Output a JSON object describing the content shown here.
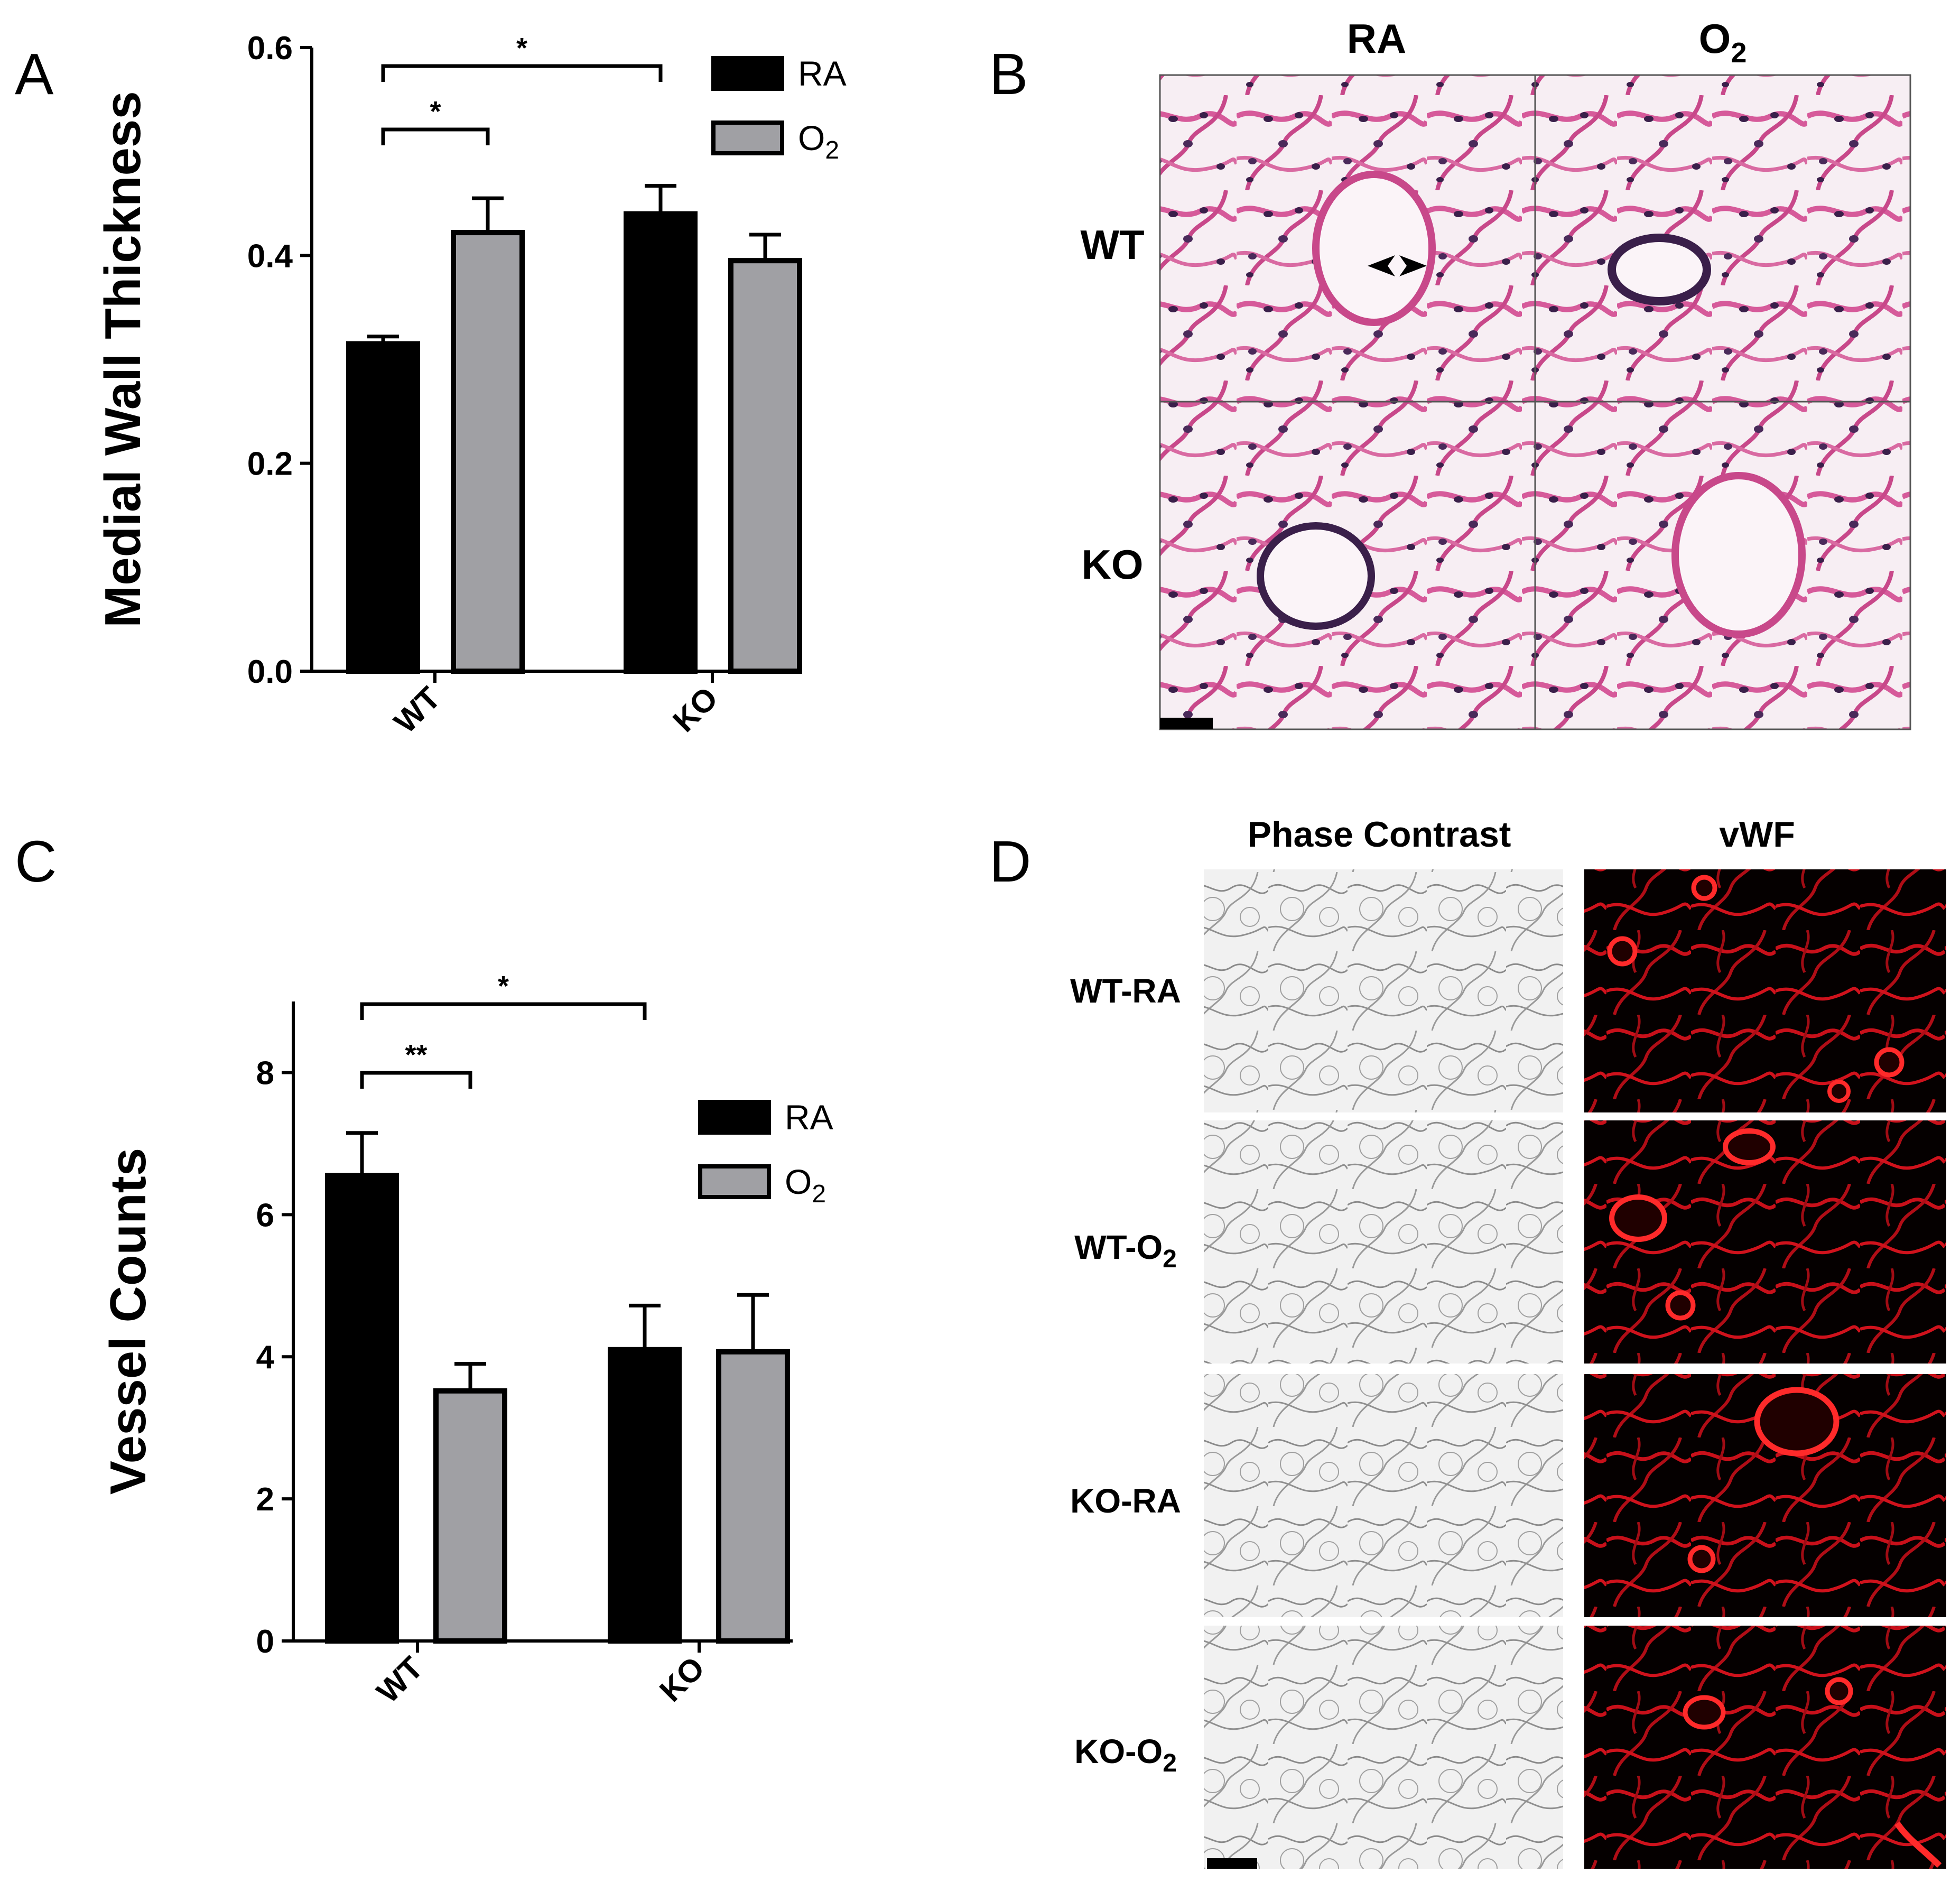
{
  "panels": {
    "a": "A",
    "b": "B",
    "c": "C",
    "d": "D"
  },
  "colors": {
    "ra": "#000000",
    "o2": "#a0a0a4",
    "he_pink": "#d65a9a",
    "he_nuclei": "#3a1f4a",
    "vwf": "#e0141e"
  },
  "chart_data": [
    {
      "type": "bar",
      "panel": "A",
      "ylabel": "Medial Wall Thickness",
      "categories": [
        "WT",
        "KO"
      ],
      "ylim": [
        0,
        0.6
      ],
      "yticks": [
        "0.0",
        "0.2",
        "0.4",
        "0.6"
      ],
      "legend_position": "top-right",
      "series": [
        {
          "name": "RA",
          "name_sub": "",
          "values": [
            0.315,
            0.44
          ],
          "errors": [
            0.007,
            0.027
          ]
        },
        {
          "name": "O",
          "name_sub": "2",
          "values": [
            0.422,
            0.395
          ],
          "errors": [
            0.033,
            0.025
          ]
        }
      ],
      "significance": [
        {
          "label": "*",
          "from": "WT-RA",
          "to": "WT-O2"
        },
        {
          "label": "*",
          "from": "WT-RA",
          "to": "KO-RA"
        }
      ]
    },
    {
      "type": "bar",
      "panel": "C",
      "ylabel": "Vessel Counts",
      "categories": [
        "WT",
        "KO"
      ],
      "ylim": [
        0,
        9
      ],
      "yticks": [
        "0",
        "2",
        "4",
        "6",
        "8"
      ],
      "legend_position": "top-right",
      "series": [
        {
          "name": "RA",
          "name_sub": "",
          "values": [
            6.55,
            4.1
          ],
          "errors": [
            0.6,
            0.62
          ]
        },
        {
          "name": "O",
          "name_sub": "2",
          "values": [
            3.52,
            4.07
          ],
          "errors": [
            0.38,
            0.8
          ]
        }
      ],
      "significance": [
        {
          "label": "**",
          "from": "WT-RA",
          "to": "WT-O2"
        },
        {
          "label": "*",
          "from": "WT-RA",
          "to": "KO-RA"
        }
      ]
    }
  ],
  "panel_b": {
    "columns": [
      {
        "text": "RA",
        "sub": ""
      },
      {
        "text": "O",
        "sub": "2"
      }
    ],
    "rows": [
      "WT",
      "KO"
    ]
  },
  "panel_d": {
    "columns": [
      "Phase Contrast",
      "vWF"
    ],
    "rows": [
      {
        "text": "WT-RA",
        "sub": ""
      },
      {
        "text": "WT-O",
        "sub": "2"
      },
      {
        "text": "KO-RA",
        "sub": ""
      },
      {
        "text": "KO-O",
        "sub": "2"
      }
    ]
  }
}
